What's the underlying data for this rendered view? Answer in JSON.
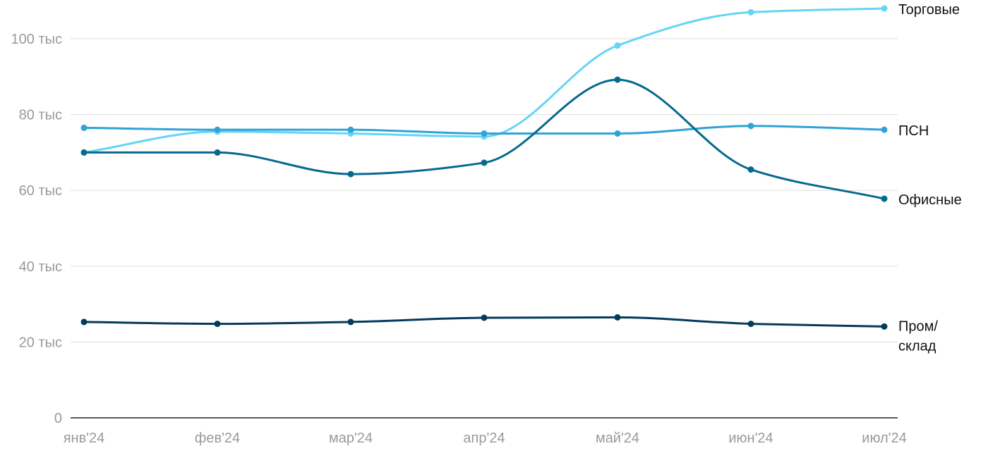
{
  "chart_data": {
    "type": "line",
    "x": [
      "янв'24",
      "фев'24",
      "мар'24",
      "апр'24",
      "май'24",
      "июн'24",
      "июл'24"
    ],
    "ylim": [
      0,
      100000
    ],
    "yticks": [
      {
        "value": 0,
        "label": "0"
      },
      {
        "value": 20000,
        "label": "20 тыс"
      },
      {
        "value": 40000,
        "label": "40 тыс"
      },
      {
        "value": 60000,
        "label": "60 тыс"
      },
      {
        "value": 80000,
        "label": "80 тыс"
      },
      {
        "value": 100000,
        "label": "100 тыс"
      }
    ],
    "grid": true,
    "legend": "labels at line ends (right)",
    "series": [
      {
        "name": "Торговые",
        "label_lines": [
          "Торговые"
        ],
        "color": "#66d4f5",
        "values": [
          70000,
          75500,
          75000,
          74200,
          98200,
          107000,
          108000
        ]
      },
      {
        "name": "ПСН",
        "label_lines": [
          "ПСН"
        ],
        "color": "#2fa3d6",
        "values": [
          76500,
          76000,
          76000,
          75000,
          75000,
          77000,
          76000
        ]
      },
      {
        "name": "Офисные",
        "label_lines": [
          "Офисные"
        ],
        "color": "#06698e",
        "values": [
          70000,
          70000,
          64300,
          67300,
          89200,
          65500,
          57800
        ]
      },
      {
        "name": "Пром/склад",
        "label_lines": [
          "Пром/",
          "склад"
        ],
        "color": "#043a5a",
        "values": [
          25300,
          24800,
          25300,
          26400,
          26500,
          24800,
          24100
        ]
      }
    ]
  }
}
